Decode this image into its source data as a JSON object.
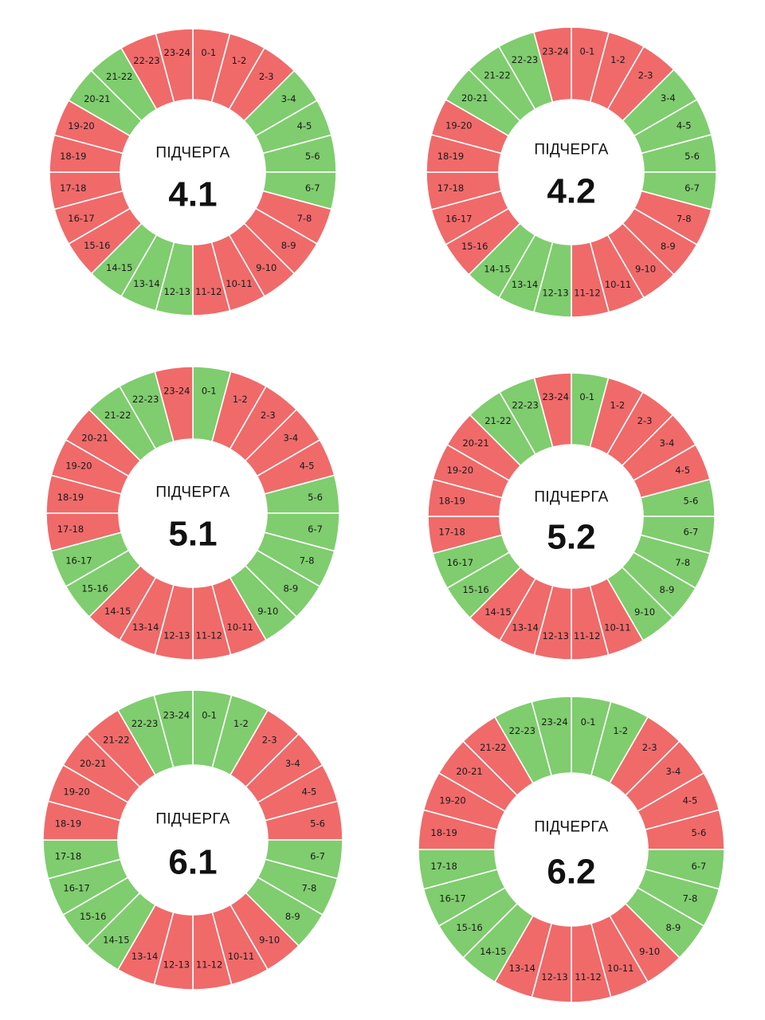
{
  "colors": {
    "on": "#7fcd6e",
    "off": "#f06a6a",
    "divider": "#ffffff"
  },
  "legend_colors_meaning": {
    "green": "on",
    "red": "off"
  },
  "hours": [
    "0-1",
    "1-2",
    "2-3",
    "3-4",
    "4-5",
    "5-6",
    "6-7",
    "7-8",
    "8-9",
    "9-10",
    "10-11",
    "11-12",
    "12-13",
    "13-14",
    "14-15",
    "15-16",
    "16-17",
    "17-18",
    "18-19",
    "19-20",
    "20-21",
    "21-22",
    "22-23",
    "23-24"
  ],
  "caption": "ПІДЧЕРГА",
  "queues": [
    {
      "id": "4.1",
      "states": [
        "off",
        "off",
        "off",
        "on",
        "on",
        "on",
        "on",
        "off",
        "off",
        "off",
        "off",
        "off",
        "on",
        "on",
        "on",
        "off",
        "off",
        "off",
        "off",
        "off",
        "on",
        "on",
        "off",
        "off"
      ]
    },
    {
      "id": "4.2",
      "states": [
        "off",
        "off",
        "off",
        "on",
        "on",
        "on",
        "on",
        "off",
        "off",
        "off",
        "off",
        "off",
        "on",
        "on",
        "on",
        "off",
        "off",
        "off",
        "off",
        "off",
        "on",
        "on",
        "on",
        "off"
      ]
    },
    {
      "id": "5.1",
      "states": [
        "on",
        "off",
        "off",
        "off",
        "off",
        "on",
        "on",
        "on",
        "on",
        "on",
        "off",
        "off",
        "off",
        "off",
        "off",
        "on",
        "on",
        "off",
        "off",
        "off",
        "off",
        "on",
        "on",
        "off"
      ]
    },
    {
      "id": "5.2",
      "states": [
        "on",
        "off",
        "off",
        "off",
        "off",
        "on",
        "on",
        "on",
        "on",
        "on",
        "off",
        "off",
        "off",
        "off",
        "off",
        "on",
        "on",
        "off",
        "off",
        "off",
        "off",
        "on",
        "on",
        "off"
      ]
    },
    {
      "id": "6.1",
      "states": [
        "on",
        "on",
        "off",
        "off",
        "off",
        "off",
        "on",
        "on",
        "on",
        "off",
        "off",
        "off",
        "off",
        "off",
        "on",
        "on",
        "on",
        "on",
        "off",
        "off",
        "off",
        "off",
        "on",
        "on"
      ]
    },
    {
      "id": "6.2",
      "states": [
        "on",
        "on",
        "off",
        "off",
        "off",
        "off",
        "on",
        "on",
        "on",
        "off",
        "off",
        "off",
        "off",
        "off",
        "on",
        "on",
        "on",
        "on",
        "off",
        "off",
        "off",
        "off",
        "on",
        "on"
      ]
    }
  ]
}
